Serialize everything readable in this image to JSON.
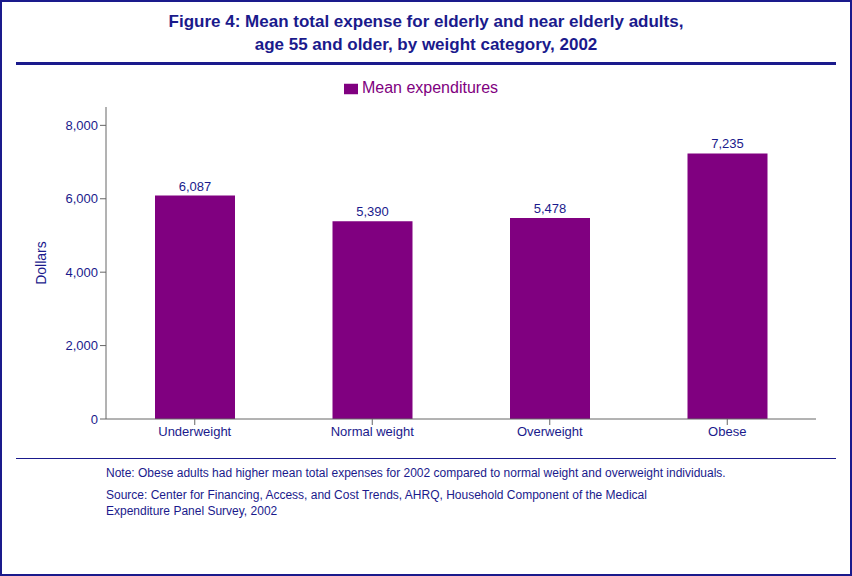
{
  "chart_data": {
    "type": "bar",
    "title": "Figure 4: Mean total expense for elderly and near elderly adults,\nage 55 and older, by weight category, 2002",
    "categories": [
      "Underweight",
      "Normal weight",
      "Overweight",
      "Obese"
    ],
    "series": [
      {
        "name": "Mean expenditures",
        "color": "#800080",
        "values": [
          6087,
          5390,
          5478,
          7235
        ],
        "value_labels": [
          "6,087",
          "5,390",
          "5,478",
          "7,235"
        ]
      }
    ],
    "ylabel": "Dollars",
    "ylim": [
      0,
      8500
    ],
    "yticks": [
      0,
      {
        "value": 2000,
        "label": "2,000"
      },
      {
        "value": 4000,
        "label": "4,000"
      },
      {
        "value": 6000,
        "label": "6,000"
      },
      {
        "value": 8000,
        "label": "8,000"
      }
    ],
    "grid": false,
    "legend": "top",
    "data_labels": true,
    "annotations": [
      "Note: Obese adults had higher mean total expenses for 2002 compared to normal weight and overweight individuals.",
      "Source:  Center for Financing, Access, and Cost Trends, AHRQ, Household Component of the Medical\nExpenditure Panel Survey, 2002"
    ]
  }
}
